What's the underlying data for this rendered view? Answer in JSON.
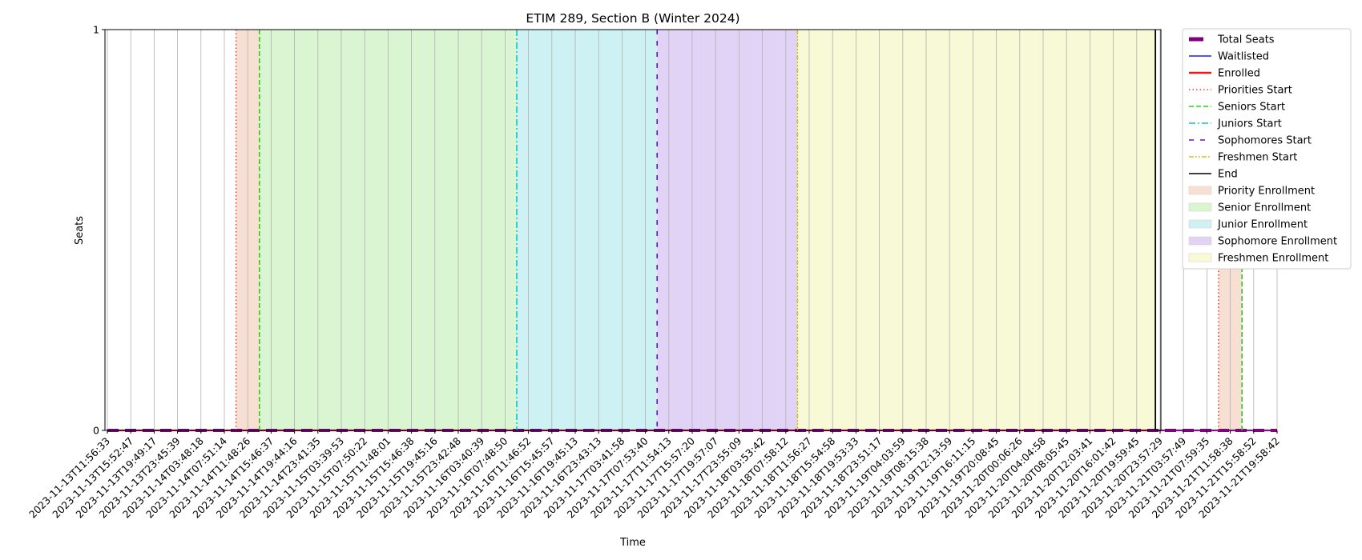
{
  "chart_data": {
    "type": "line",
    "title": "ETIM 289, Section B (Winter 2024)",
    "xlabel": "Time",
    "ylabel": "Seats",
    "ylim": [
      0,
      1
    ],
    "yticks": [
      "0",
      "1"
    ],
    "grid": "vertical",
    "legend_position": "outside-right",
    "x": [
      "2023-11-13T11:56:33",
      "2023-11-13T15:52:47",
      "2023-11-13T19:49:17",
      "2023-11-13T23:45:39",
      "2023-11-14T03:48:18",
      "2023-11-14T07:51:14",
      "2023-11-14T11:48:26",
      "2023-11-14T15:46:37",
      "2023-11-14T19:44:16",
      "2023-11-14T23:41:35",
      "2023-11-15T03:39:53",
      "2023-11-15T07:50:22",
      "2023-11-15T11:48:01",
      "2023-11-15T15:46:38",
      "2023-11-15T19:45:16",
      "2023-11-15T23:42:48",
      "2023-11-16T03:40:39",
      "2023-11-16T07:48:50",
      "2023-11-16T11:46:52",
      "2023-11-16T15:45:57",
      "2023-11-16T19:45:13",
      "2023-11-16T23:43:13",
      "2023-11-17T03:41:58",
      "2023-11-17T07:53:40",
      "2023-11-17T11:54:13",
      "2023-11-17T15:57:20",
      "2023-11-17T19:57:07",
      "2023-11-17T23:55:09",
      "2023-11-18T03:53:42",
      "2023-11-18T07:58:12",
      "2023-11-18T11:56:27",
      "2023-11-18T15:54:58",
      "2023-11-18T19:53:33",
      "2023-11-18T23:51:17",
      "2023-11-19T04:03:59",
      "2023-11-19T08:15:38",
      "2023-11-19T12:13:59",
      "2023-11-19T16:11:15",
      "2023-11-19T20:08:45",
      "2023-11-20T00:06:26",
      "2023-11-20T04:04:58",
      "2023-11-20T08:05:45",
      "2023-11-20T12:03:41",
      "2023-11-20T16:01:42",
      "2023-11-20T19:59:45",
      "2023-11-20T23:57:29",
      "2023-11-21T03:57:49",
      "2023-11-21T07:59:35",
      "2023-11-21T11:58:38",
      "2023-11-21T15:58:52",
      "2023-11-21T19:58:42"
    ],
    "series": [
      {
        "name": "Total Seats",
        "color": "#800080",
        "style": "dashed-thick",
        "values": [
          0,
          0,
          0,
          0,
          0,
          0,
          0,
          0,
          0,
          0,
          0,
          0,
          0,
          0,
          0,
          0,
          0,
          0,
          0,
          0,
          0,
          0,
          0,
          0,
          0,
          0,
          0,
          0,
          0,
          0,
          0,
          0,
          0,
          0,
          0,
          0,
          0,
          0,
          0,
          0,
          0,
          0,
          0,
          0,
          0,
          0,
          0,
          0,
          0,
          0,
          0
        ]
      },
      {
        "name": "Waitlisted",
        "color": "#1f1fe8",
        "style": "solid",
        "values": [
          0,
          0,
          0,
          0,
          0,
          0,
          0,
          0,
          0,
          0,
          0,
          0,
          0,
          0,
          0,
          0,
          0,
          0,
          0,
          0,
          0,
          0,
          0,
          0,
          0,
          0,
          0,
          0,
          0,
          0,
          0,
          0,
          0,
          0,
          0,
          0,
          0,
          0,
          0,
          0,
          0,
          0,
          0,
          0,
          0,
          0,
          0,
          0,
          0,
          0,
          0
        ]
      },
      {
        "name": "Enrolled",
        "color": "#e81a1a",
        "style": "solid-thick",
        "values": [
          0,
          0,
          0,
          0,
          0,
          0,
          0,
          0,
          0,
          0,
          0,
          0,
          0,
          0,
          0,
          0,
          0,
          0,
          0,
          0,
          0,
          0,
          0,
          0,
          0,
          0,
          0,
          0,
          0,
          0,
          0,
          0,
          0,
          0,
          0,
          0,
          0,
          0,
          0,
          0,
          0,
          0,
          0,
          0,
          0,
          0,
          0,
          0,
          0,
          0,
          0
        ]
      }
    ],
    "markers": [
      {
        "name": "Priorities Start",
        "color": "#e8452c",
        "style": "dotted",
        "x_index": 5.5
      },
      {
        "name": "Seniors Start",
        "color": "#2ecc1a",
        "style": "dashed",
        "x_index": 6.5
      },
      {
        "name": "Juniors Start",
        "color": "#17becf",
        "style": "dashdot",
        "x_index": 17.5
      },
      {
        "name": "Sophomores Start",
        "color": "#6a0dd6",
        "style": "loose-dash",
        "x_index": 23.5
      },
      {
        "name": "Freshmen Start",
        "color": "#d4c21a",
        "style": "dashdotdot",
        "x_index": 29.5
      },
      {
        "name": "End",
        "color": "#000000",
        "style": "solid",
        "x_index": 44.8
      },
      {
        "name": "",
        "color": "#e8452c",
        "style": "dotted",
        "x_index": 47.5
      },
      {
        "name": "",
        "color": "#2ecc1a",
        "style": "dashed",
        "x_index": 48.5
      }
    ],
    "periods": [
      {
        "name": "Priority Enrollment",
        "color": "#f8dfd3",
        "from_index": 5.5,
        "to_index": 6.5
      },
      {
        "name": "Senior Enrollment",
        "color": "#d9f5d1",
        "from_index": 6.5,
        "to_index": 17.5
      },
      {
        "name": "Junior Enrollment",
        "color": "#cef1f4",
        "from_index": 17.5,
        "to_index": 23.5
      },
      {
        "name": "Sophomore Enrollment",
        "color": "#e0d3f5",
        "from_index": 23.5,
        "to_index": 29.5
      },
      {
        "name": "Freshmen Enrollment",
        "color": "#f8f9d7",
        "from_index": 29.5,
        "to_index": 44.8
      },
      {
        "name": "",
        "color": "#f8dfd3",
        "from_index": 47.5,
        "to_index": 48.5
      }
    ]
  }
}
